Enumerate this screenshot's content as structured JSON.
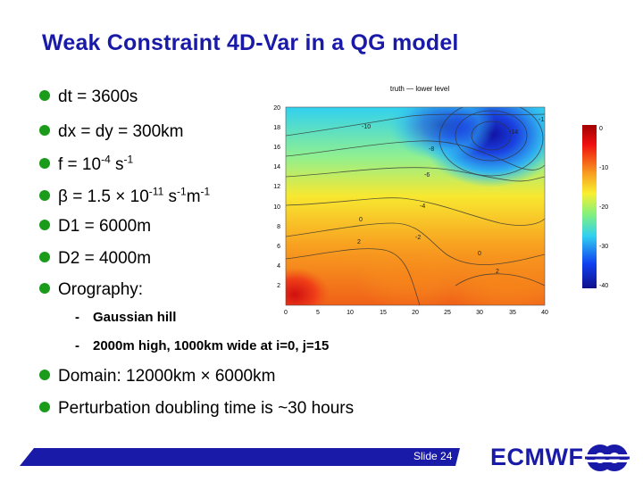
{
  "slide": {
    "title": "Weak Constraint 4D-Var in a QG model",
    "bullets": [
      {
        "text": "dt = 3600s"
      },
      {
        "text": "dx = dy = 300km"
      },
      {
        "pre": "f = 10",
        "sup1": "-4",
        "mid": " s",
        "sup2": "-1"
      },
      {
        "pre": "β = 1.5 × 10",
        "sup1": "-11",
        "mid": " s",
        "sup2": "-1",
        "mid2": "m",
        "sup3": "-1"
      },
      {
        "text": "D1 = 6000m"
      },
      {
        "text": "D2 = 4000m"
      },
      {
        "text": "Orography:"
      }
    ],
    "sub_bullets": [
      {
        "dash": "-",
        "text": "Gaussian hill"
      },
      {
        "dash": "-",
        "text": "2000m high, 1000km wide at i=0, j=15"
      }
    ],
    "bullets_lower": [
      {
        "text": "Domain: 12000km × 6000km"
      },
      {
        "text": "Perturbation doubling time is ~30 hours"
      }
    ],
    "slide_number": "Slide 24",
    "logo_text": "ECMWF"
  },
  "figure": {
    "title": "truth — lower level",
    "colors": {
      "red": "#d21010",
      "orange": "#f88018",
      "yellow": "#f8e830",
      "cyan": "#30d8f0",
      "blue": "#1030e0",
      "darkblue": "#101090"
    },
    "x_ticks": [
      "0",
      "5",
      "10",
      "15",
      "20",
      "25",
      "30",
      "35",
      "40"
    ],
    "y_ticks": [
      "20",
      "18",
      "16",
      "14",
      "12",
      "10",
      "8",
      "6",
      "4",
      "2"
    ],
    "colorbar_ticks": [
      "0",
      "-10",
      "-20",
      "-30",
      "-40"
    ],
    "contour_labels": [
      "-10",
      "-12",
      "-14",
      "-8",
      "-6",
      "-4",
      "-2",
      "0",
      "2",
      "0",
      "2"
    ]
  },
  "chart_data": {
    "type": "heatmap",
    "title": "truth — lower level",
    "x_range": [
      0,
      40
    ],
    "y_range": [
      0,
      20
    ],
    "x_ticks": [
      0,
      5,
      10,
      15,
      20,
      25,
      30,
      35,
      40
    ],
    "y_ticks": [
      2,
      4,
      6,
      8,
      10,
      12,
      14,
      16,
      18,
      20
    ],
    "colorbar_range": [
      -40,
      0
    ],
    "colorbar_ticks": [
      0,
      -10,
      -20,
      -30,
      -40
    ],
    "contour_labels": [
      -10,
      -12,
      -14,
      -8,
      -6,
      -4,
      -2,
      0,
      2
    ]
  }
}
